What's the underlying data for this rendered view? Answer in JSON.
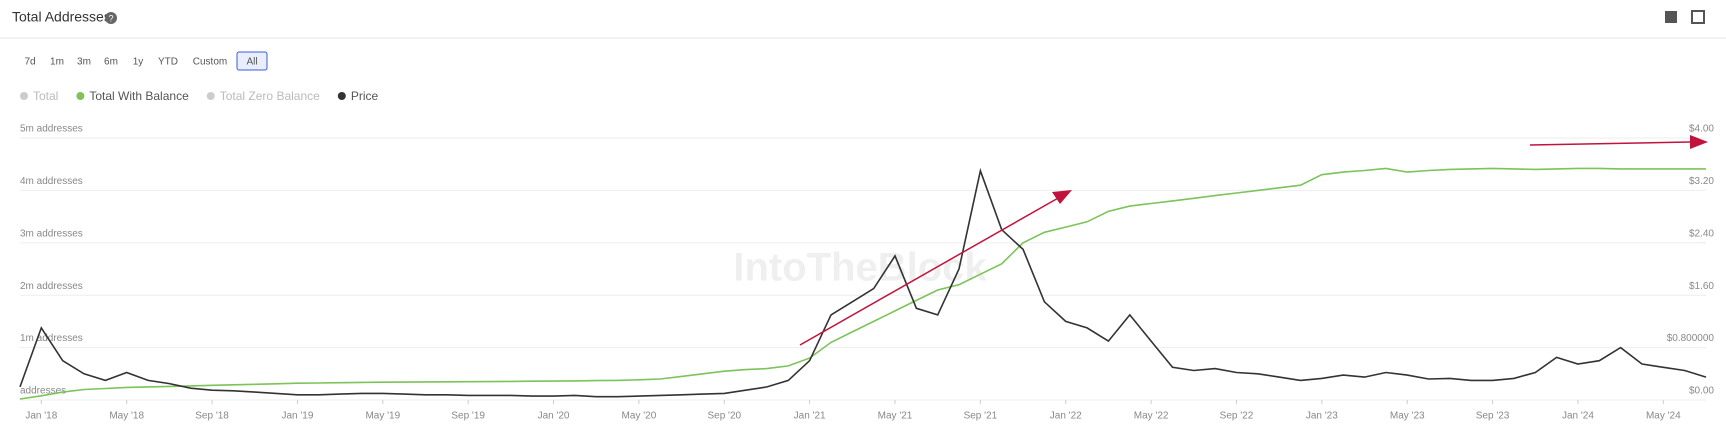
{
  "header": {
    "title": "Total Addresses"
  },
  "ranges": [
    "7d",
    "1m",
    "3m",
    "6m",
    "1y",
    "YTD",
    "Custom",
    "All"
  ],
  "active_range": 7,
  "legend_inactive": [
    "Total",
    "Total Zero Balance"
  ],
  "watermark": "IntoTheBlock",
  "chart_data": {
    "type": "line",
    "x": [
      "2017-12",
      "2018-01",
      "2018-02",
      "2018-03",
      "2018-04",
      "2018-05",
      "2018-06",
      "2018-07",
      "2018-08",
      "2018-09",
      "2018-10",
      "2018-11",
      "2018-12",
      "2019-01",
      "2019-02",
      "2019-03",
      "2019-04",
      "2019-05",
      "2019-06",
      "2019-07",
      "2019-08",
      "2019-09",
      "2019-10",
      "2019-11",
      "2019-12",
      "2020-01",
      "2020-02",
      "2020-03",
      "2020-04",
      "2020-05",
      "2020-06",
      "2020-07",
      "2020-08",
      "2020-09",
      "2020-10",
      "2020-11",
      "2020-12",
      "2021-01",
      "2021-02",
      "2021-03",
      "2021-04",
      "2021-05",
      "2021-06",
      "2021-07",
      "2021-08",
      "2021-09",
      "2021-10",
      "2021-11",
      "2021-12",
      "2022-01",
      "2022-02",
      "2022-03",
      "2022-04",
      "2022-05",
      "2022-06",
      "2022-07",
      "2022-08",
      "2022-09",
      "2022-10",
      "2022-11",
      "2022-12",
      "2023-01",
      "2023-02",
      "2023-03",
      "2023-04",
      "2023-05",
      "2023-06",
      "2023-07",
      "2023-08",
      "2023-09",
      "2023-10",
      "2023-11",
      "2023-12",
      "2024-01",
      "2024-02",
      "2024-03",
      "2024-04",
      "2024-05",
      "2024-06",
      "2024-07"
    ],
    "xticks": [
      {
        "value": "2018-01",
        "label": "Jan '18"
      },
      {
        "value": "2018-05",
        "label": "May '18"
      },
      {
        "value": "2018-09",
        "label": "Sep '18"
      },
      {
        "value": "2019-01",
        "label": "Jan '19"
      },
      {
        "value": "2019-05",
        "label": "May '19"
      },
      {
        "value": "2019-09",
        "label": "Sep '19"
      },
      {
        "value": "2020-01",
        "label": "Jan '20"
      },
      {
        "value": "2020-05",
        "label": "May '20"
      },
      {
        "value": "2020-09",
        "label": "Sep '20"
      },
      {
        "value": "2021-01",
        "label": "Jan '21"
      },
      {
        "value": "2021-05",
        "label": "May '21"
      },
      {
        "value": "2021-09",
        "label": "Sep '21"
      },
      {
        "value": "2022-01",
        "label": "Jan '22"
      },
      {
        "value": "2022-05",
        "label": "May '22"
      },
      {
        "value": "2022-09",
        "label": "Sep '22"
      },
      {
        "value": "2023-01",
        "label": "Jan '23"
      },
      {
        "value": "2023-05",
        "label": "May '23"
      },
      {
        "value": "2023-09",
        "label": "Sep '23"
      },
      {
        "value": "2024-01",
        "label": "Jan '24"
      },
      {
        "value": "2024-05",
        "label": "May '24"
      }
    ],
    "ylim": [
      0,
      5000000
    ],
    "yticks": [
      {
        "value": 0,
        "label": "addresses"
      },
      {
        "value": 1000000,
        "label": "1m addresses"
      },
      {
        "value": 2000000,
        "label": "2m addresses"
      },
      {
        "value": 3000000,
        "label": "3m addresses"
      },
      {
        "value": 4000000,
        "label": "4m addresses"
      },
      {
        "value": 5000000,
        "label": "5m addresses"
      }
    ],
    "y2lim": [
      0,
      4
    ],
    "y2ticks": [
      {
        "value": 0,
        "label": "$0.00"
      },
      {
        "value": 0.8,
        "label": "$0.800000"
      },
      {
        "value": 1.6,
        "label": "$1.60"
      },
      {
        "value": 2.4,
        "label": "$2.40"
      },
      {
        "value": 3.2,
        "label": "$3.20"
      },
      {
        "value": 4,
        "label": "$4.00"
      }
    ],
    "grid": true,
    "series": [
      {
        "name": "Total With Balance",
        "color": "#7cc35a",
        "values": [
          20000,
          80000,
          150000,
          200000,
          220000,
          240000,
          250000,
          260000,
          270000,
          280000,
          290000,
          300000,
          310000,
          320000,
          325000,
          330000,
          335000,
          340000,
          342000,
          345000,
          348000,
          350000,
          352000,
          355000,
          358000,
          360000,
          365000,
          370000,
          375000,
          385000,
          400000,
          450000,
          500000,
          550000,
          580000,
          600000,
          650000,
          800000,
          1100000,
          1300000,
          1500000,
          1700000,
          1900000,
          2100000,
          2200000,
          2400000,
          2600000,
          3000000,
          3200000,
          3300000,
          3400000,
          3600000,
          3700000,
          3750000,
          3800000,
          3850000,
          3900000,
          3950000,
          4000000,
          4050000,
          4100000,
          4300000,
          4350000,
          4380000,
          4420000,
          4350000,
          4380000,
          4400000,
          4410000,
          4420000,
          4410000,
          4400000,
          4410000,
          4420000,
          4420000,
          4410000,
          4410000,
          4410000,
          4410000,
          4410000
        ]
      },
      {
        "name": "Price",
        "color": "#333333",
        "axis": "y2",
        "values": [
          0.2,
          1.1,
          0.6,
          0.4,
          0.3,
          0.42,
          0.3,
          0.25,
          0.18,
          0.15,
          0.14,
          0.12,
          0.1,
          0.08,
          0.08,
          0.09,
          0.1,
          0.1,
          0.09,
          0.08,
          0.08,
          0.07,
          0.07,
          0.07,
          0.06,
          0.06,
          0.07,
          0.05,
          0.05,
          0.06,
          0.07,
          0.08,
          0.09,
          0.1,
          0.15,
          0.2,
          0.3,
          0.6,
          1.3,
          1.5,
          1.7,
          2.2,
          1.4,
          1.3,
          2.0,
          3.5,
          2.6,
          2.3,
          1.5,
          1.2,
          1.1,
          0.9,
          1.3,
          0.9,
          0.5,
          0.45,
          0.48,
          0.42,
          0.4,
          0.35,
          0.3,
          0.33,
          0.38,
          0.35,
          0.42,
          0.38,
          0.32,
          0.33,
          0.3,
          0.3,
          0.33,
          0.42,
          0.65,
          0.55,
          0.6,
          0.8,
          0.55,
          0.5,
          0.45,
          0.35
        ]
      }
    ]
  }
}
